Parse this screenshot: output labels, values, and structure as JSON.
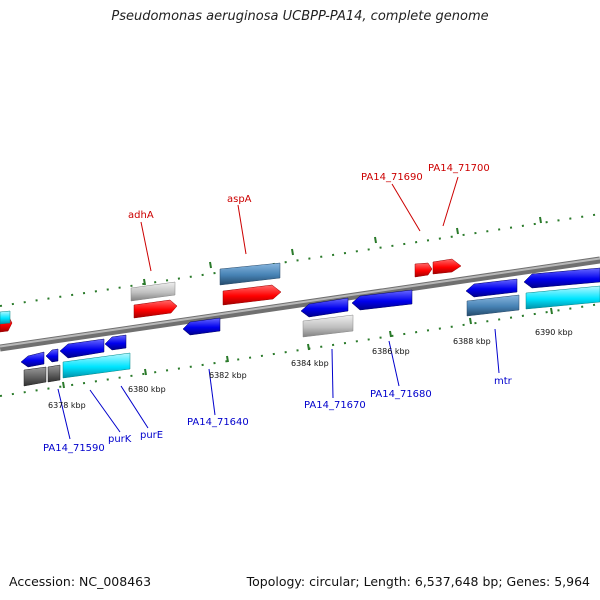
{
  "title": "Pseudomonas aeruginosa UCBPP-PA14, complete genome",
  "footer": {
    "accession": "Accession: NC_008463",
    "topology": "Topology: circular; Length: 6,537,648 bp; Genes: 5,964"
  },
  "colors": {
    "background": "#ffffff",
    "backbone": "#808080",
    "tick": "#2a7a2a",
    "label_red": "#cc0000",
    "label_blue": "#0000cc",
    "gene_red": "#ff0000",
    "gene_blue": "#0000ee",
    "gene_cyan": "#00e5ff",
    "gene_steel": "#4682b4",
    "gene_gray": "#c0c0c0",
    "gene_dark": "#606060"
  },
  "scale_labels": [
    "6378 kbp",
    "6380 kbp",
    "6382 kbp",
    "6384 kbp",
    "6386 kbp",
    "6388 kbp",
    "6390 kbp"
  ],
  "upper_labels": [
    "adhA",
    "aspA",
    "PA14_71690",
    "PA14_71700"
  ],
  "lower_labels": [
    "PA14_71590",
    "purK",
    "purE",
    "PA14_71640",
    "PA14_71670",
    "PA14_71680",
    "mtr"
  ]
}
